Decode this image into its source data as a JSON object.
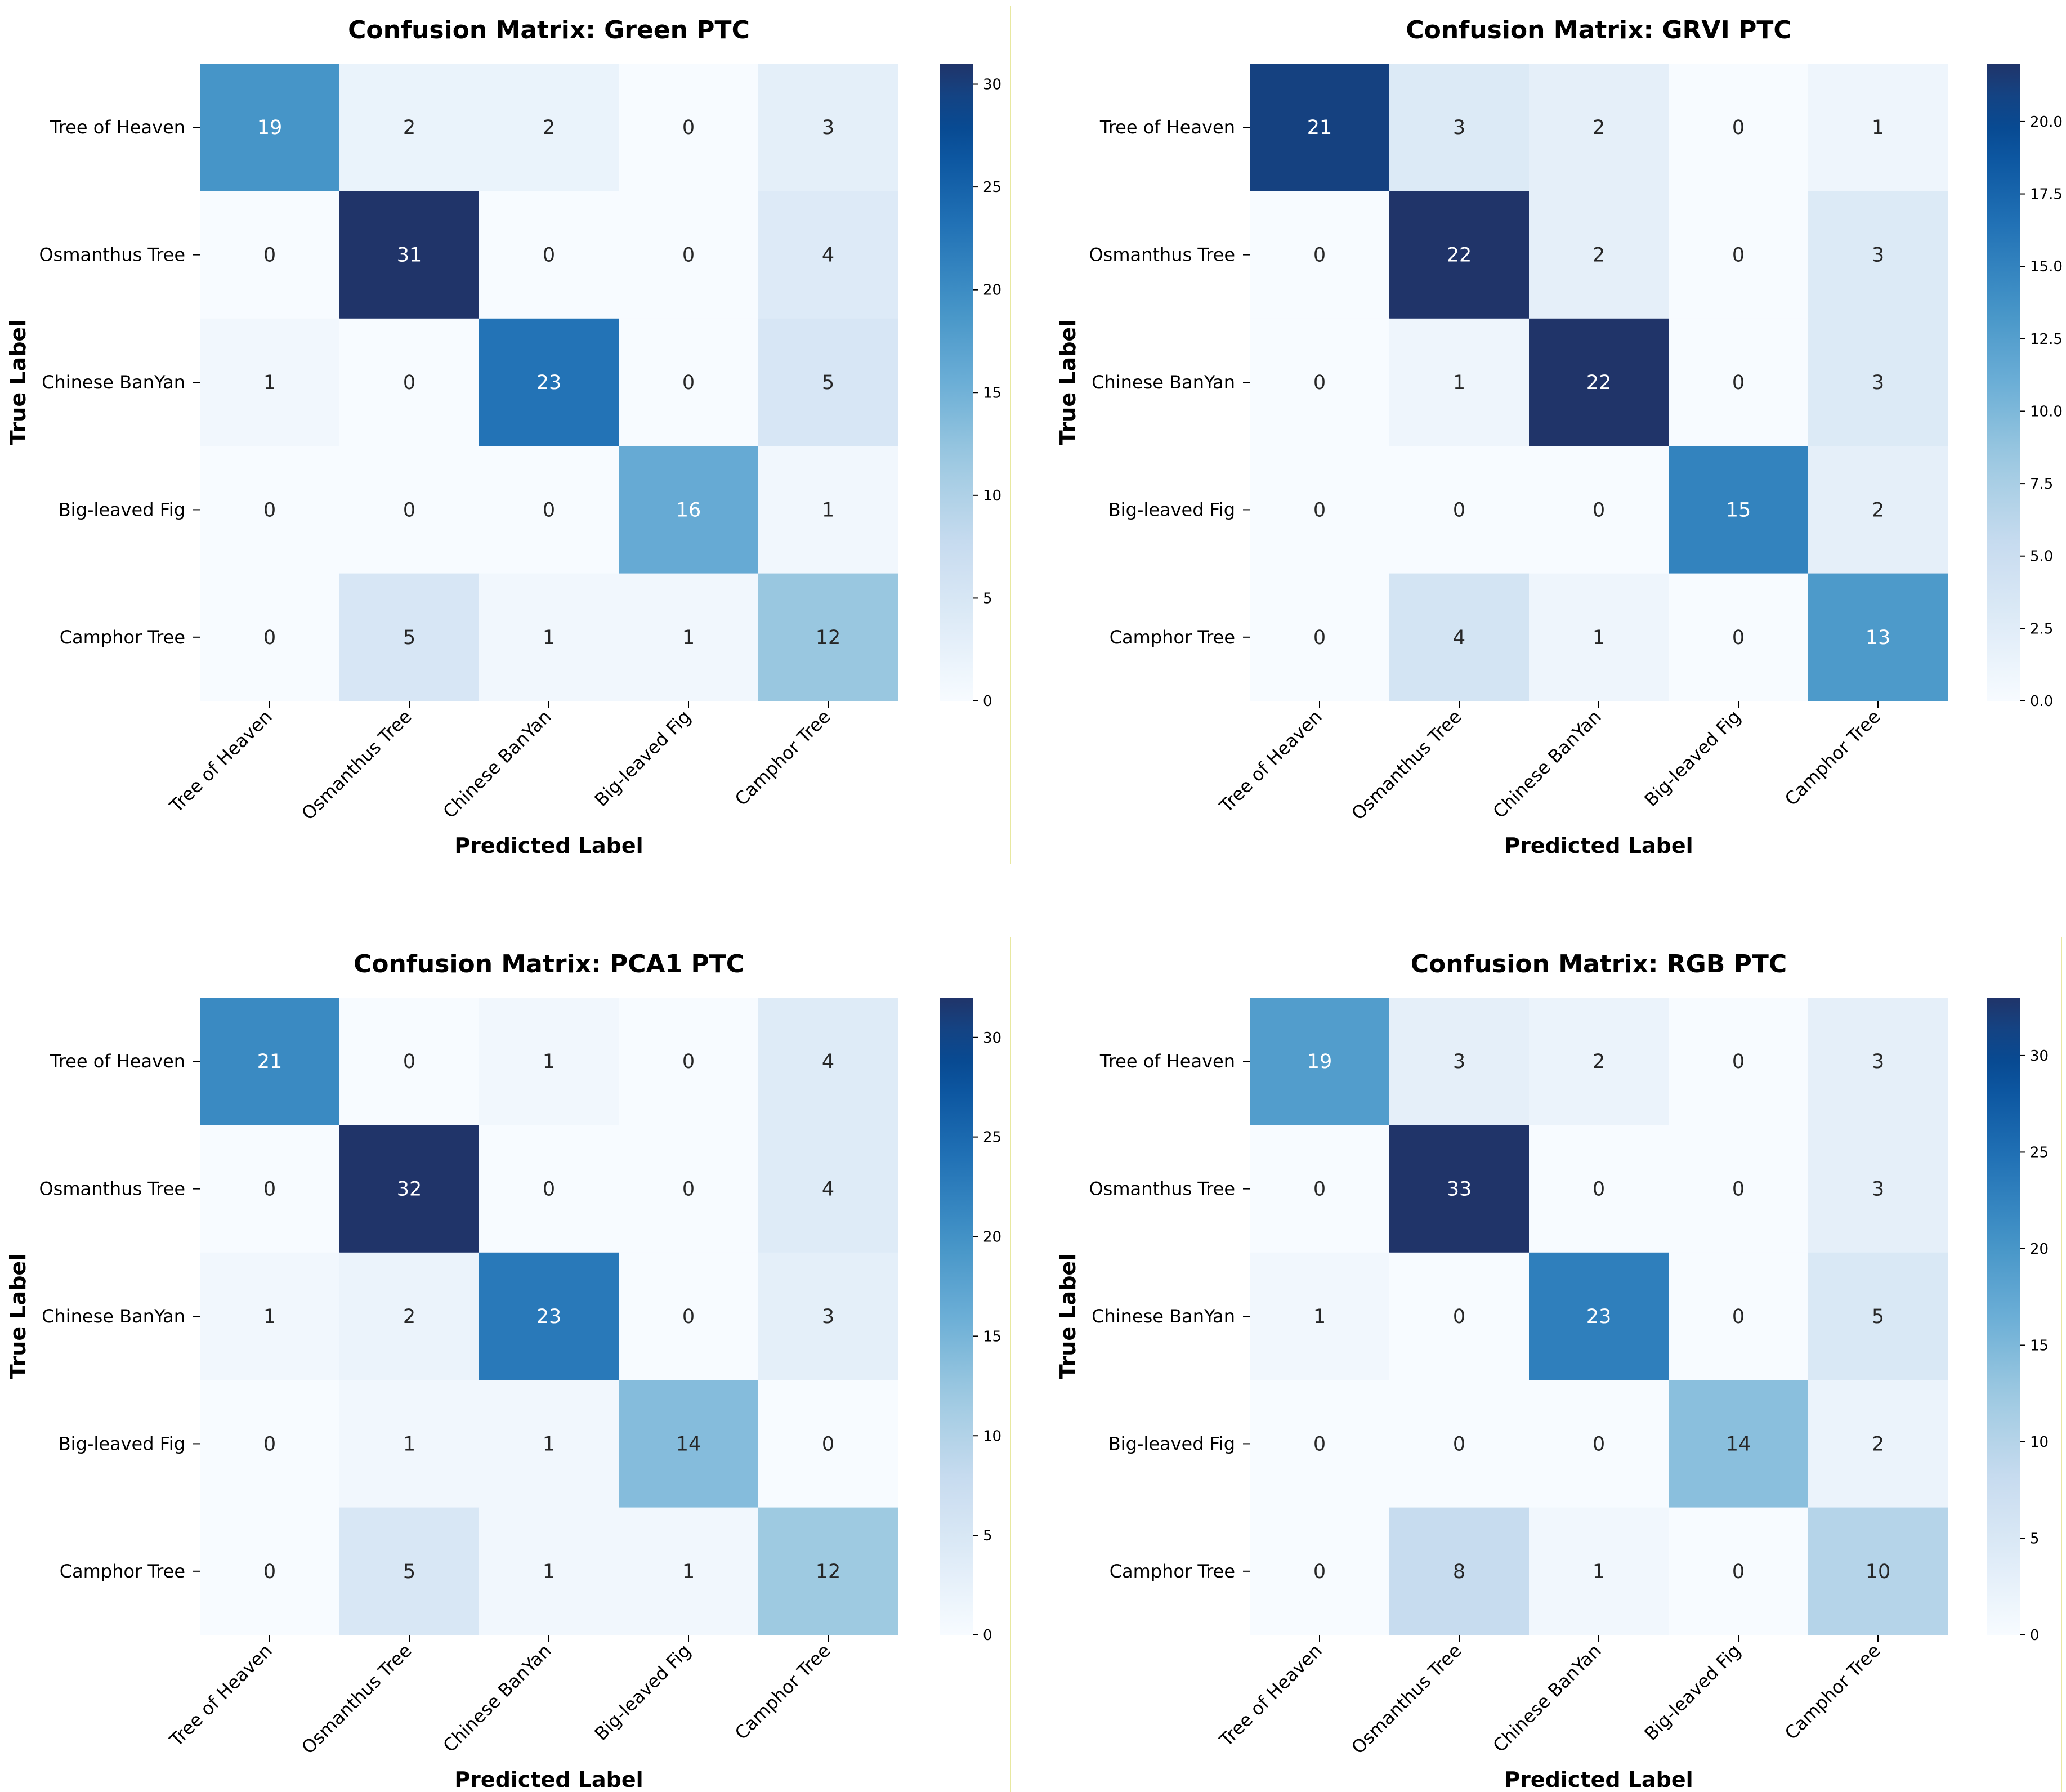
{
  "chart_data": [
    {
      "type": "heatmap",
      "title": "Confusion Matrix: Green  PTC",
      "xlabel": "Predicted Label",
      "ylabel": "True Label",
      "x_categories": [
        "Tree of Heaven",
        "Osmanthus Tree",
        "Chinese BanYan",
        "Big-leaved Fig",
        "Camphor Tree"
      ],
      "y_categories": [
        "Tree of Heaven",
        "Osmanthus Tree",
        "Chinese BanYan",
        "Big-leaved Fig",
        "Camphor Tree"
      ],
      "values": [
        [
          19,
          2,
          2,
          0,
          3
        ],
        [
          0,
          31,
          0,
          0,
          4
        ],
        [
          1,
          0,
          23,
          0,
          5
        ],
        [
          0,
          0,
          0,
          16,
          1
        ],
        [
          0,
          5,
          1,
          1,
          12
        ]
      ],
      "colorbar": {
        "min": 0,
        "max": 31,
        "ticks": [
          "0",
          "5",
          "10",
          "15",
          "20",
          "25",
          "30"
        ],
        "tick_values": [
          0,
          5,
          10,
          15,
          20,
          25,
          30
        ]
      },
      "colormap": "Blues"
    },
    {
      "type": "heatmap",
      "title": "Confusion Matrix: GRVI  PTC",
      "xlabel": "Predicted Label",
      "ylabel": "True Label",
      "x_categories": [
        "Tree of Heaven",
        "Osmanthus Tree",
        "Chinese BanYan",
        "Big-leaved Fig",
        "Camphor Tree"
      ],
      "y_categories": [
        "Tree of Heaven",
        "Osmanthus Tree",
        "Chinese BanYan",
        "Big-leaved Fig",
        "Camphor Tree"
      ],
      "values": [
        [
          21,
          3,
          2,
          0,
          1
        ],
        [
          0,
          22,
          2,
          0,
          3
        ],
        [
          0,
          1,
          22,
          0,
          3
        ],
        [
          0,
          0,
          0,
          15,
          2
        ],
        [
          0,
          4,
          1,
          0,
          13
        ]
      ],
      "colorbar": {
        "min": 0,
        "max": 22,
        "ticks": [
          "0.0",
          "2.5",
          "5.0",
          "7.5",
          "10.0",
          "12.5",
          "15.0",
          "17.5",
          "20.0"
        ],
        "tick_values": [
          0,
          2.5,
          5,
          7.5,
          10,
          12.5,
          15,
          17.5,
          20
        ]
      },
      "colormap": "Blues"
    },
    {
      "type": "heatmap",
      "title": "Confusion Matrix: PCA1  PTC",
      "xlabel": "Predicted Label",
      "ylabel": "True Label",
      "x_categories": [
        "Tree of Heaven",
        "Osmanthus Tree",
        "Chinese BanYan",
        "Big-leaved Fig",
        "Camphor Tree"
      ],
      "y_categories": [
        "Tree of Heaven",
        "Osmanthus Tree",
        "Chinese BanYan",
        "Big-leaved Fig",
        "Camphor Tree"
      ],
      "values": [
        [
          21,
          0,
          1,
          0,
          4
        ],
        [
          0,
          32,
          0,
          0,
          4
        ],
        [
          1,
          2,
          23,
          0,
          3
        ],
        [
          0,
          1,
          1,
          14,
          0
        ],
        [
          0,
          5,
          1,
          1,
          12
        ]
      ],
      "colorbar": {
        "min": 0,
        "max": 32,
        "ticks": [
          "0",
          "5",
          "10",
          "15",
          "20",
          "25",
          "30"
        ],
        "tick_values": [
          0,
          5,
          10,
          15,
          20,
          25,
          30
        ]
      },
      "colormap": "Blues"
    },
    {
      "type": "heatmap",
      "title": "Confusion Matrix: RGB  PTC",
      "xlabel": "Predicted Label",
      "ylabel": "True Label",
      "x_categories": [
        "Tree of Heaven",
        "Osmanthus Tree",
        "Chinese BanYan",
        "Big-leaved Fig",
        "Camphor Tree"
      ],
      "y_categories": [
        "Tree of Heaven",
        "Osmanthus Tree",
        "Chinese BanYan",
        "Big-leaved Fig",
        "Camphor Tree"
      ],
      "values": [
        [
          19,
          3,
          2,
          0,
          3
        ],
        [
          0,
          33,
          0,
          0,
          3
        ],
        [
          1,
          0,
          23,
          0,
          5
        ],
        [
          0,
          0,
          0,
          14,
          2
        ],
        [
          0,
          8,
          1,
          0,
          10
        ]
      ],
      "colorbar": {
        "min": 0,
        "max": 33,
        "ticks": [
          "0",
          "5",
          "10",
          "15",
          "20",
          "25",
          "30"
        ],
        "tick_values": [
          0,
          5,
          10,
          15,
          20,
          25,
          30
        ]
      },
      "colormap": "Blues"
    }
  ],
  "colors": {
    "separator": "#e8e8a0",
    "text_dark": "#262626",
    "text_light": "#ffffff"
  }
}
